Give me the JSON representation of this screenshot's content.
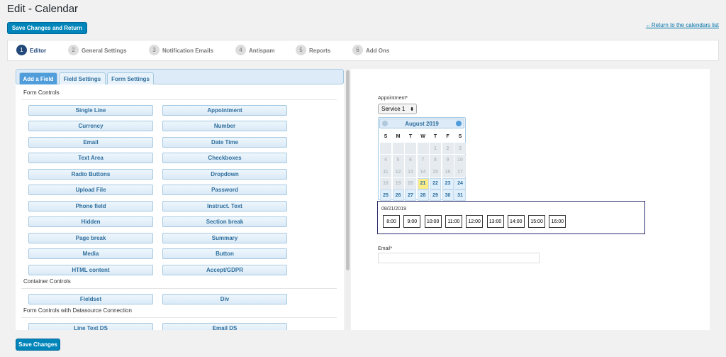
{
  "header": {
    "title": "Edit - Calendar",
    "save_return": "Save Changes and Return",
    "return_link": "←Return to the calendars list"
  },
  "steps": [
    {
      "number": "1",
      "label": "Editor"
    },
    {
      "number": "2",
      "label": "General Settings"
    },
    {
      "number": "3",
      "label": "Notification Emails"
    },
    {
      "number": "4",
      "label": "Antispam"
    },
    {
      "number": "5",
      "label": "Reports"
    },
    {
      "number": "6",
      "label": "Add Ons"
    }
  ],
  "tabs": [
    "Add a Field",
    "Field Settings",
    "Form Settings"
  ],
  "sections": [
    {
      "title": "Form Controls",
      "buttons": [
        "Single Line",
        "Appointment",
        "Currency",
        "Number",
        "Email",
        "Date Time",
        "Text Area",
        "Checkboxes",
        "Radio Buttons",
        "Dropdown",
        "Upload File",
        "Password",
        "Phone field",
        "Instruct. Text",
        "Hidden",
        "Section break",
        "Page break",
        "Summary",
        "Media",
        "Button",
        "HTML content",
        "Accept/GDPR"
      ]
    },
    {
      "title": "Container Controls",
      "buttons": [
        "Fieldset",
        "Div"
      ]
    },
    {
      "title": "Form Controls with Datasource Connection",
      "buttons": [
        "Line Text DS",
        "Email DS"
      ]
    }
  ],
  "form": {
    "appointment_label": "Appointment*",
    "service": "Service 1",
    "calendar": {
      "month": "August 2019",
      "weekdays": [
        "S",
        "M",
        "T",
        "W",
        "T",
        "F",
        "S"
      ],
      "rows": [
        [
          null,
          null,
          null,
          null,
          {
            "d": "1",
            "available": false
          },
          {
            "d": "2",
            "available": false
          },
          {
            "d": "3",
            "available": false
          }
        ],
        [
          {
            "d": "4",
            "available": false
          },
          {
            "d": "5",
            "available": false
          },
          {
            "d": "6",
            "available": false
          },
          {
            "d": "7",
            "available": false
          },
          {
            "d": "8",
            "available": false
          },
          {
            "d": "9",
            "available": false
          },
          {
            "d": "10",
            "available": false
          }
        ],
        [
          {
            "d": "11",
            "available": false
          },
          {
            "d": "12",
            "available": false
          },
          {
            "d": "13",
            "available": false
          },
          {
            "d": "14",
            "available": false
          },
          {
            "d": "15",
            "available": false
          },
          {
            "d": "16",
            "available": false
          },
          {
            "d": "17",
            "available": false
          }
        ],
        [
          {
            "d": "18",
            "available": false
          },
          {
            "d": "19",
            "available": false
          },
          {
            "d": "20",
            "available": false
          },
          {
            "d": "21",
            "available": true,
            "selected": true
          },
          {
            "d": "22",
            "available": true
          },
          {
            "d": "23",
            "available": true
          },
          {
            "d": "24",
            "available": true
          }
        ],
        [
          {
            "d": "25",
            "available": true
          },
          {
            "d": "26",
            "available": true
          },
          {
            "d": "27",
            "available": true
          },
          {
            "d": "28",
            "available": true
          },
          {
            "d": "29",
            "available": true
          },
          {
            "d": "30",
            "available": true
          },
          {
            "d": "31",
            "available": true
          }
        ]
      ]
    },
    "selected_date": "08/21/2019",
    "times": [
      "8:00",
      "9:00",
      "10:00",
      "11:00",
      "12:00",
      "13:00",
      "14:00",
      "15:00",
      "16:00"
    ],
    "email_label": "Email*"
  },
  "footer": {
    "save": "Save Changes"
  }
}
